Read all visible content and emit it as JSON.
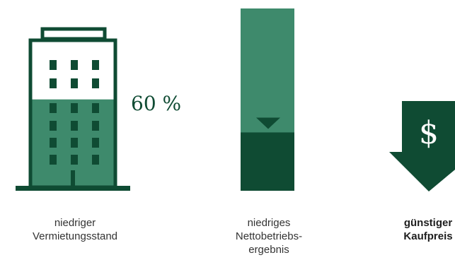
{
  "colors": {
    "dark_green": "#0f4b33",
    "light_green": "#3e8a6c",
    "white": "#ffffff"
  },
  "panels": [
    {
      "icon": "office-building-icon",
      "percent": "60 %",
      "occupancy_fraction": 0.6,
      "caption": [
        "niedriger",
        "Vermietungsstand"
      ]
    },
    {
      "icon": "net-operating-income-bar-icon",
      "level_fraction": 0.32,
      "caption": [
        "niedriges",
        "Nettobetriebs-",
        "ergebnis"
      ]
    },
    {
      "icon": "dollar-down-arrow-icon",
      "symbol": "$",
      "caption": [
        "günstiger",
        "Kaufpreis"
      ]
    }
  ]
}
